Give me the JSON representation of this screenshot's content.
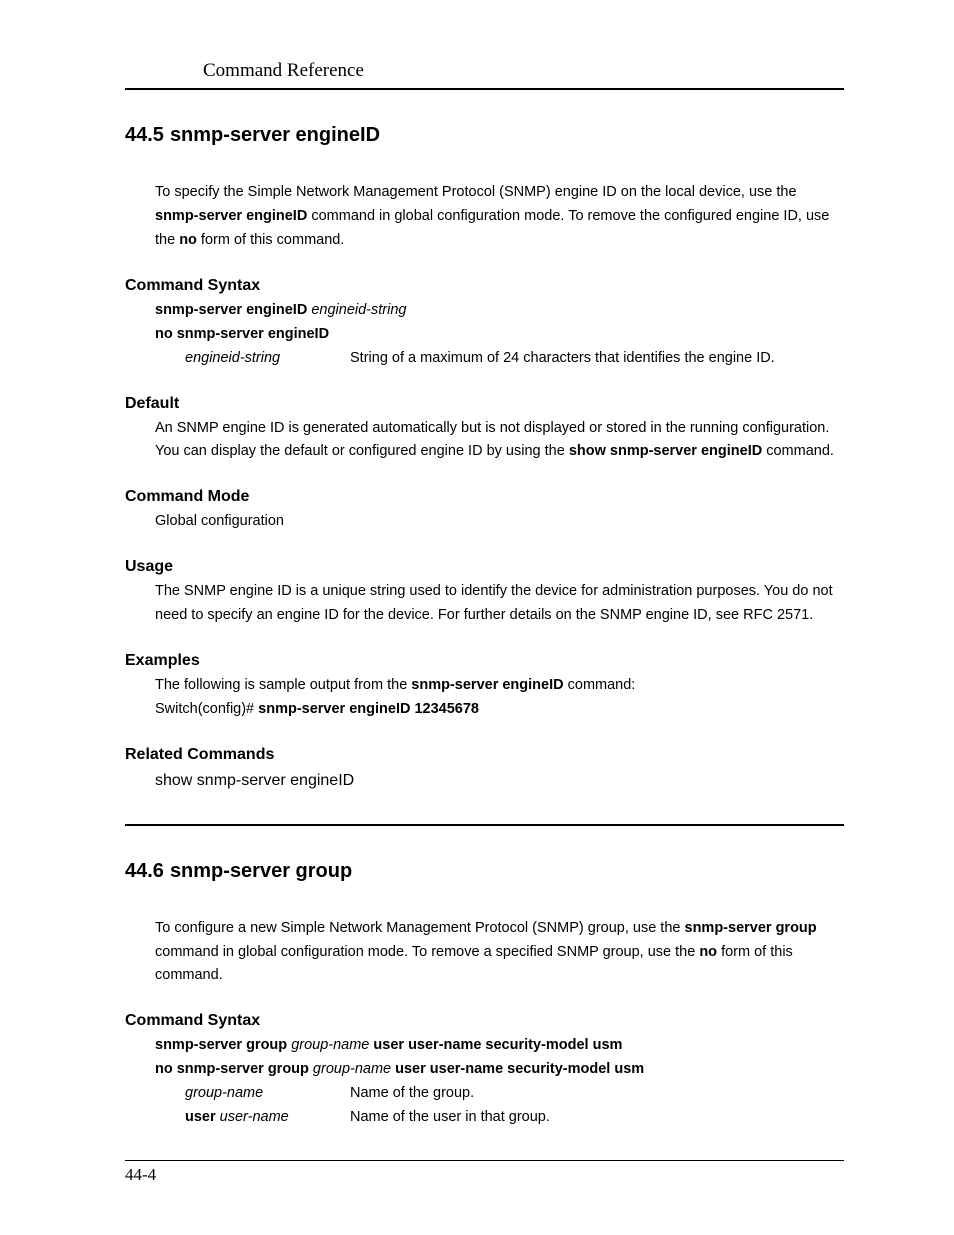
{
  "header": {
    "running_title": "Command Reference"
  },
  "section1": {
    "number": "44.5",
    "title": "snmp-server engineID",
    "intro": {
      "pre": "To specify the Simple Network Management Protocol (SNMP) engine ID on the local device, use the ",
      "bold1": "snmp-server engineID",
      "mid": " command in global configuration mode. To remove the configured engine ID, use the ",
      "bold2": "no",
      "post": " form of this command."
    },
    "syntax": {
      "heading": "Command Syntax",
      "line1_bold": "snmp-server engineID",
      "line1_italic": "engineid-string",
      "line2_bold": "no snmp-server engineID",
      "param_term": "engineid-string",
      "param_desc": "String of a maximum of 24 characters that identifies the engine ID."
    },
    "default": {
      "heading": "Default",
      "pre": "An SNMP engine ID is generated automatically but is not displayed or stored in the running configuration. You can display the default or configured engine ID by using the ",
      "bold": "show snmp-server engineID",
      "post": " command."
    },
    "mode": {
      "heading": "Command Mode",
      "text": "Global configuration"
    },
    "usage": {
      "heading": "Usage",
      "text": "The SNMP engine ID is a unique string used to identify the device for administration purposes. You do not need to specify an engine ID for the device. For further details on the SNMP engine ID, see RFC 2571."
    },
    "examples": {
      "heading": "Examples",
      "pre": "The following is sample output from the ",
      "bold1": "snmp-server engineID",
      "post1": " command:",
      "line2_pre": "Switch(config)# ",
      "line2_bold": "snmp-server engineID 12345678"
    },
    "related": {
      "heading": "Related Commands",
      "text": "show snmp-server engineID"
    }
  },
  "section2": {
    "number": "44.6",
    "title": "snmp-server group",
    "intro": {
      "pre": "To configure a new Simple Network Management Protocol (SNMP) group, use the ",
      "bold1": "snmp-server group",
      "mid": " command in global configuration mode. To remove a specified SNMP group, use the ",
      "bold2": "no",
      "post": " form of this command."
    },
    "syntax": {
      "heading": "Command Syntax",
      "line1_b1": "snmp-server group",
      "line1_i1": "group-name",
      "line1_b2": "user user-name security-model usm",
      "line2_b1": "no snmp-server group",
      "line2_i1": "group-name",
      "line2_b2": "user user-name security-model usm",
      "p1_term": "group-name",
      "p1_desc": "Name of the group.",
      "p2_term_b": "user",
      "p2_term_i": "user-name",
      "p2_desc": "Name of the user in that group."
    }
  },
  "footer": {
    "page": "44-4"
  }
}
